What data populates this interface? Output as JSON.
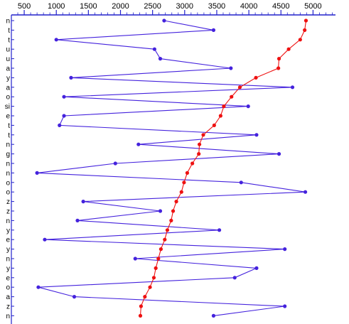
{
  "chart_data": {
    "type": "line",
    "orientation": "horizontal-value-axis-top",
    "x_ticks": [
      500,
      1000,
      1500,
      2000,
      2500,
      3000,
      3500,
      4000,
      4500,
      5000
    ],
    "xlim": [
      300,
      5350
    ],
    "y_labels": [
      "n",
      "t",
      "t",
      "u",
      "u",
      "a",
      "y",
      "a",
      "o",
      "si",
      "e",
      "t",
      "t",
      "n",
      "g",
      "n",
      "n",
      "o",
      "o",
      "z",
      "z",
      "n",
      "y",
      "e",
      "y",
      "n",
      "y",
      "e",
      "o",
      "a",
      "z",
      "n"
    ],
    "legend": false,
    "grid": false,
    "series": [
      {
        "name": "",
        "color": "#4422dd",
        "values": [
          2680,
          3450,
          1000,
          2530,
          2620,
          3720,
          1230,
          4680,
          1120,
          3990,
          1120,
          1050,
          4120,
          2280,
          4470,
          1920,
          700,
          3880,
          4880,
          1420,
          2620,
          1330,
          3540,
          820,
          4560,
          2230,
          4120,
          3780,
          720,
          1280,
          4560,
          3450
        ]
      },
      {
        "name": "",
        "color": "#ee1111",
        "values": [
          4890,
          4870,
          4800,
          4620,
          4470,
          4460,
          4110,
          3860,
          3730,
          3610,
          3560,
          3460,
          3290,
          3230,
          3220,
          3120,
          3040,
          2990,
          2950,
          2870,
          2820,
          2790,
          2730,
          2690,
          2630,
          2590,
          2550,
          2520,
          2460,
          2380,
          2320,
          2310
        ]
      }
    ]
  }
}
